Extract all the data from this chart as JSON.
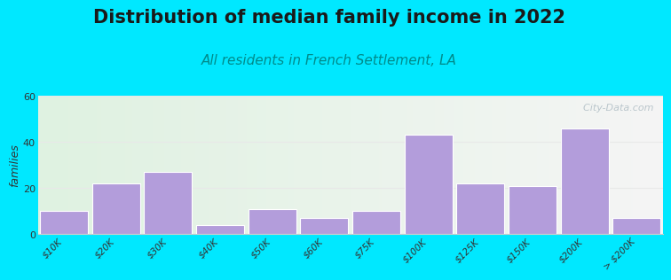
{
  "title": "Distribution of median family income in 2022",
  "subtitle": "All residents in French Settlement, LA",
  "ylabel": "families",
  "categories": [
    "$10K",
    "$20K",
    "$30K",
    "$40K",
    "$50K",
    "$60K",
    "$75K",
    "$100K",
    "$125K",
    "$150K",
    "$200K",
    "> $200K"
  ],
  "values": [
    10,
    22,
    27,
    4,
    11,
    7,
    10,
    43,
    22,
    21,
    46,
    7
  ],
  "bar_color": "#b39ddb",
  "bar_edge_color": "#ffffff",
  "ylim": [
    0,
    60
  ],
  "yticks": [
    0,
    20,
    40,
    60
  ],
  "background_outer": "#00e8ff",
  "plot_bg_left": "#dff2e1",
  "plot_bg_right": "#f5f5f5",
  "title_fontsize": 15,
  "subtitle_fontsize": 11,
  "title_color": "#1a1a1a",
  "subtitle_color": "#008b8b",
  "watermark_text": "  City-Data.com",
  "watermark_color": "#b0bec5",
  "grid_color": "#e8e8e8"
}
